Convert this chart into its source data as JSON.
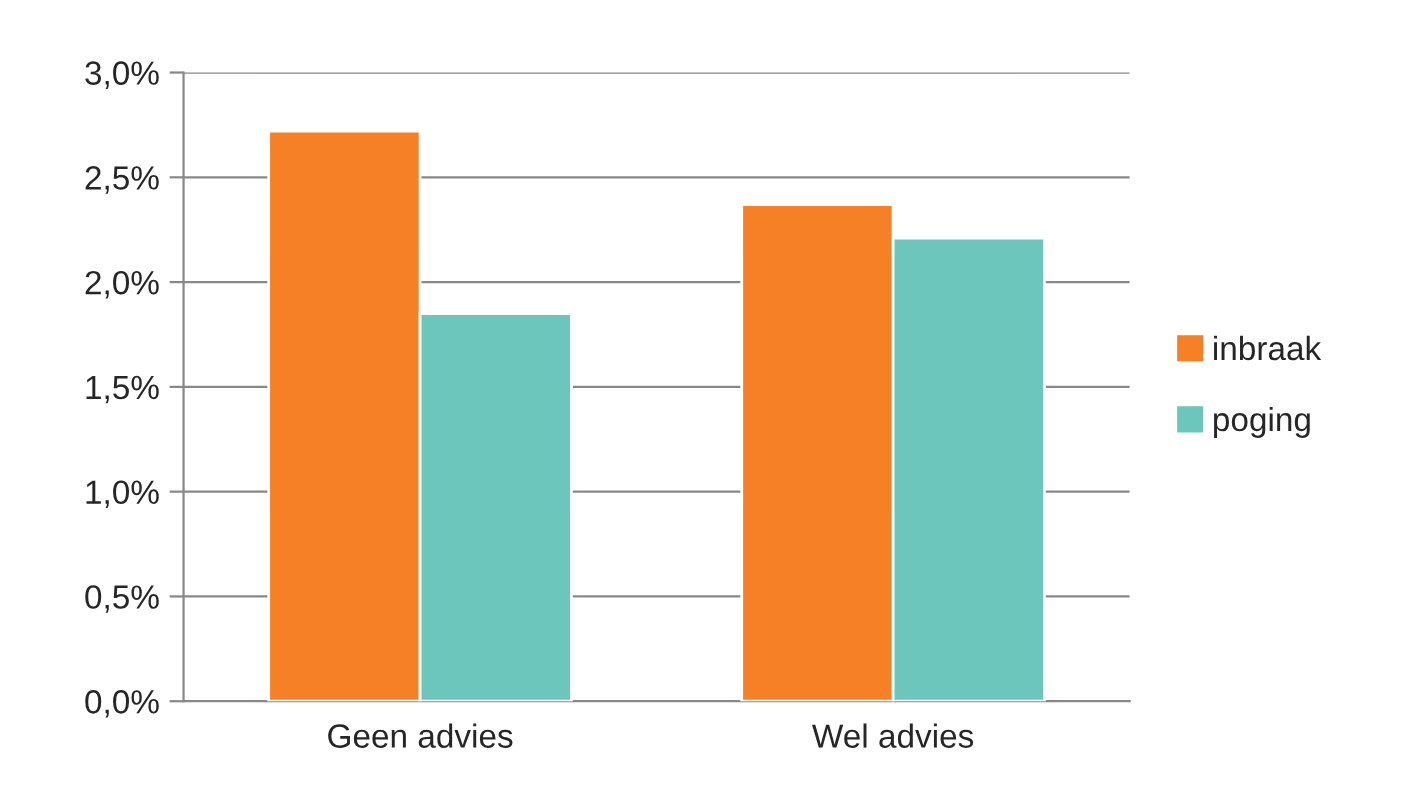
{
  "chart_data": {
    "type": "bar",
    "categories": [
      "Geen advies",
      "Wel advies"
    ],
    "series": [
      {
        "name": "inbraak",
        "color": "#f58025",
        "values": [
          2.72,
          2.37
        ]
      },
      {
        "name": "poging",
        "color": "#6cc6bc",
        "values": [
          1.85,
          2.21
        ]
      }
    ],
    "ylim": [
      0,
      3.0
    ],
    "yticks": [
      {
        "value": 0,
        "label": "0,0%"
      },
      {
        "value": 0.5,
        "label": "0,5%"
      },
      {
        "value": 1.0,
        "label": "1,0%"
      },
      {
        "value": 1.5,
        "label": "1,5%"
      },
      {
        "value": 2.0,
        "label": "2,0%"
      },
      {
        "value": 2.5,
        "label": "2,5%"
      },
      {
        "value": 3.0,
        "label": "3,0%"
      }
    ],
    "grid": "y",
    "legend": "right"
  }
}
